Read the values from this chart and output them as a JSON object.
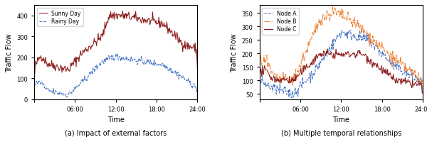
{
  "fig_width": 6.0,
  "fig_height": 2.01,
  "dpi": 100,
  "left_caption": "(a) Impact of external factors",
  "right_caption": "(b) Multiple temporal relationships",
  "xlabel": "Time",
  "ylabel": "Traffic Flow",
  "xtick_labels": [
    "",
    "06:00",
    "12:00",
    "18:00",
    "24:00"
  ],
  "xtick_positions": [
    0,
    72,
    144,
    216,
    288
  ],
  "left": {
    "sunny_color": "#8B1A1A",
    "rainy_color": "#4472C4",
    "sunny_label": "Sunny Day",
    "rainy_label": "Rainy Day",
    "ylim": [
      0,
      450
    ],
    "yticks": [
      0,
      100,
      200,
      300,
      400
    ]
  },
  "right": {
    "nodeA_color": "#4472C4",
    "nodeB_color": "#ED7D31",
    "nodeC_color": "#8B1A1A",
    "nodeA_label": "Node A",
    "nodeB_label": "Node B",
    "nodeC_label": "Node C",
    "ylim": [
      30,
      380
    ],
    "yticks": [
      50,
      100,
      150,
      200,
      250,
      300,
      350
    ]
  },
  "seed": 42,
  "n_points": 289
}
